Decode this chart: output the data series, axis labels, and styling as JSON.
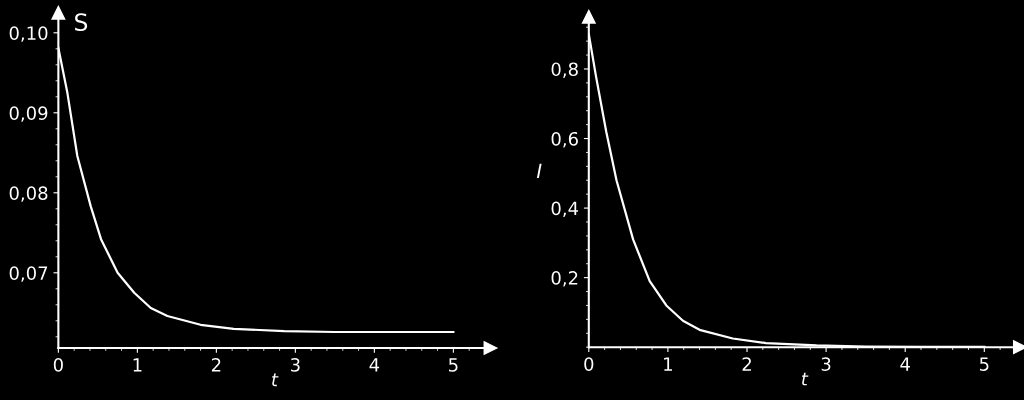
{
  "chart_data": [
    {
      "type": "line",
      "ylabel": "S",
      "xlabel": "t",
      "x": [
        0,
        0.114,
        0.24,
        0.41,
        0.54,
        0.75,
        0.96,
        1.17,
        1.38,
        1.8,
        2.22,
        2.86,
        3.5,
        4.2,
        5
      ],
      "series": [
        {
          "color": "#ffffff",
          "values": [
            0.0981,
            0.0925,
            0.0846,
            0.0783,
            0.0742,
            0.07,
            0.0675,
            0.0656,
            0.0646,
            0.0635,
            0.063,
            0.0627,
            0.0626,
            0.0626,
            0.0626
          ]
        }
      ],
      "xlim": [
        0,
        5.47
      ],
      "ylim": [
        0.0606,
        0.1025
      ],
      "xticks": [
        0,
        1,
        2,
        3,
        4,
        5
      ],
      "yticks": [
        {
          "value": 0.07,
          "label": "0,07"
        },
        {
          "value": 0.08,
          "label": "0,08"
        },
        {
          "value": 0.09,
          "label": "0,09"
        },
        {
          "value": 0.1,
          "label": "0,10"
        }
      ],
      "grid": false,
      "legend": false,
      "marker": "none",
      "line_style": "solid"
    },
    {
      "type": "line",
      "ylabel": "I",
      "xlabel": "t",
      "x": [
        0,
        0.09,
        0.22,
        0.35,
        0.56,
        0.77,
        0.98,
        1.19,
        1.4,
        1.82,
        2.24,
        2.88,
        3.5,
        4.2,
        5
      ],
      "series": [
        {
          "color": "#ffffff",
          "values": [
            0.9,
            0.78,
            0.62,
            0.48,
            0.31,
            0.19,
            0.12,
            0.076,
            0.05,
            0.025,
            0.012,
            0.005,
            0.002,
            0.001,
            0.001
          ]
        }
      ],
      "xlim": [
        0,
        5.45
      ],
      "ylim": [
        0,
        0.95
      ],
      "xticks": [
        0,
        1,
        2,
        3,
        4,
        5
      ],
      "yticks": [
        {
          "value": 0.2,
          "label": "0,2"
        },
        {
          "value": 0.4,
          "label": "0,4"
        },
        {
          "value": 0.6,
          "label": "0,6"
        },
        {
          "value": 0.8,
          "label": "0,8"
        }
      ],
      "grid": false,
      "legend": false,
      "marker": "none",
      "line_style": "solid"
    }
  ]
}
